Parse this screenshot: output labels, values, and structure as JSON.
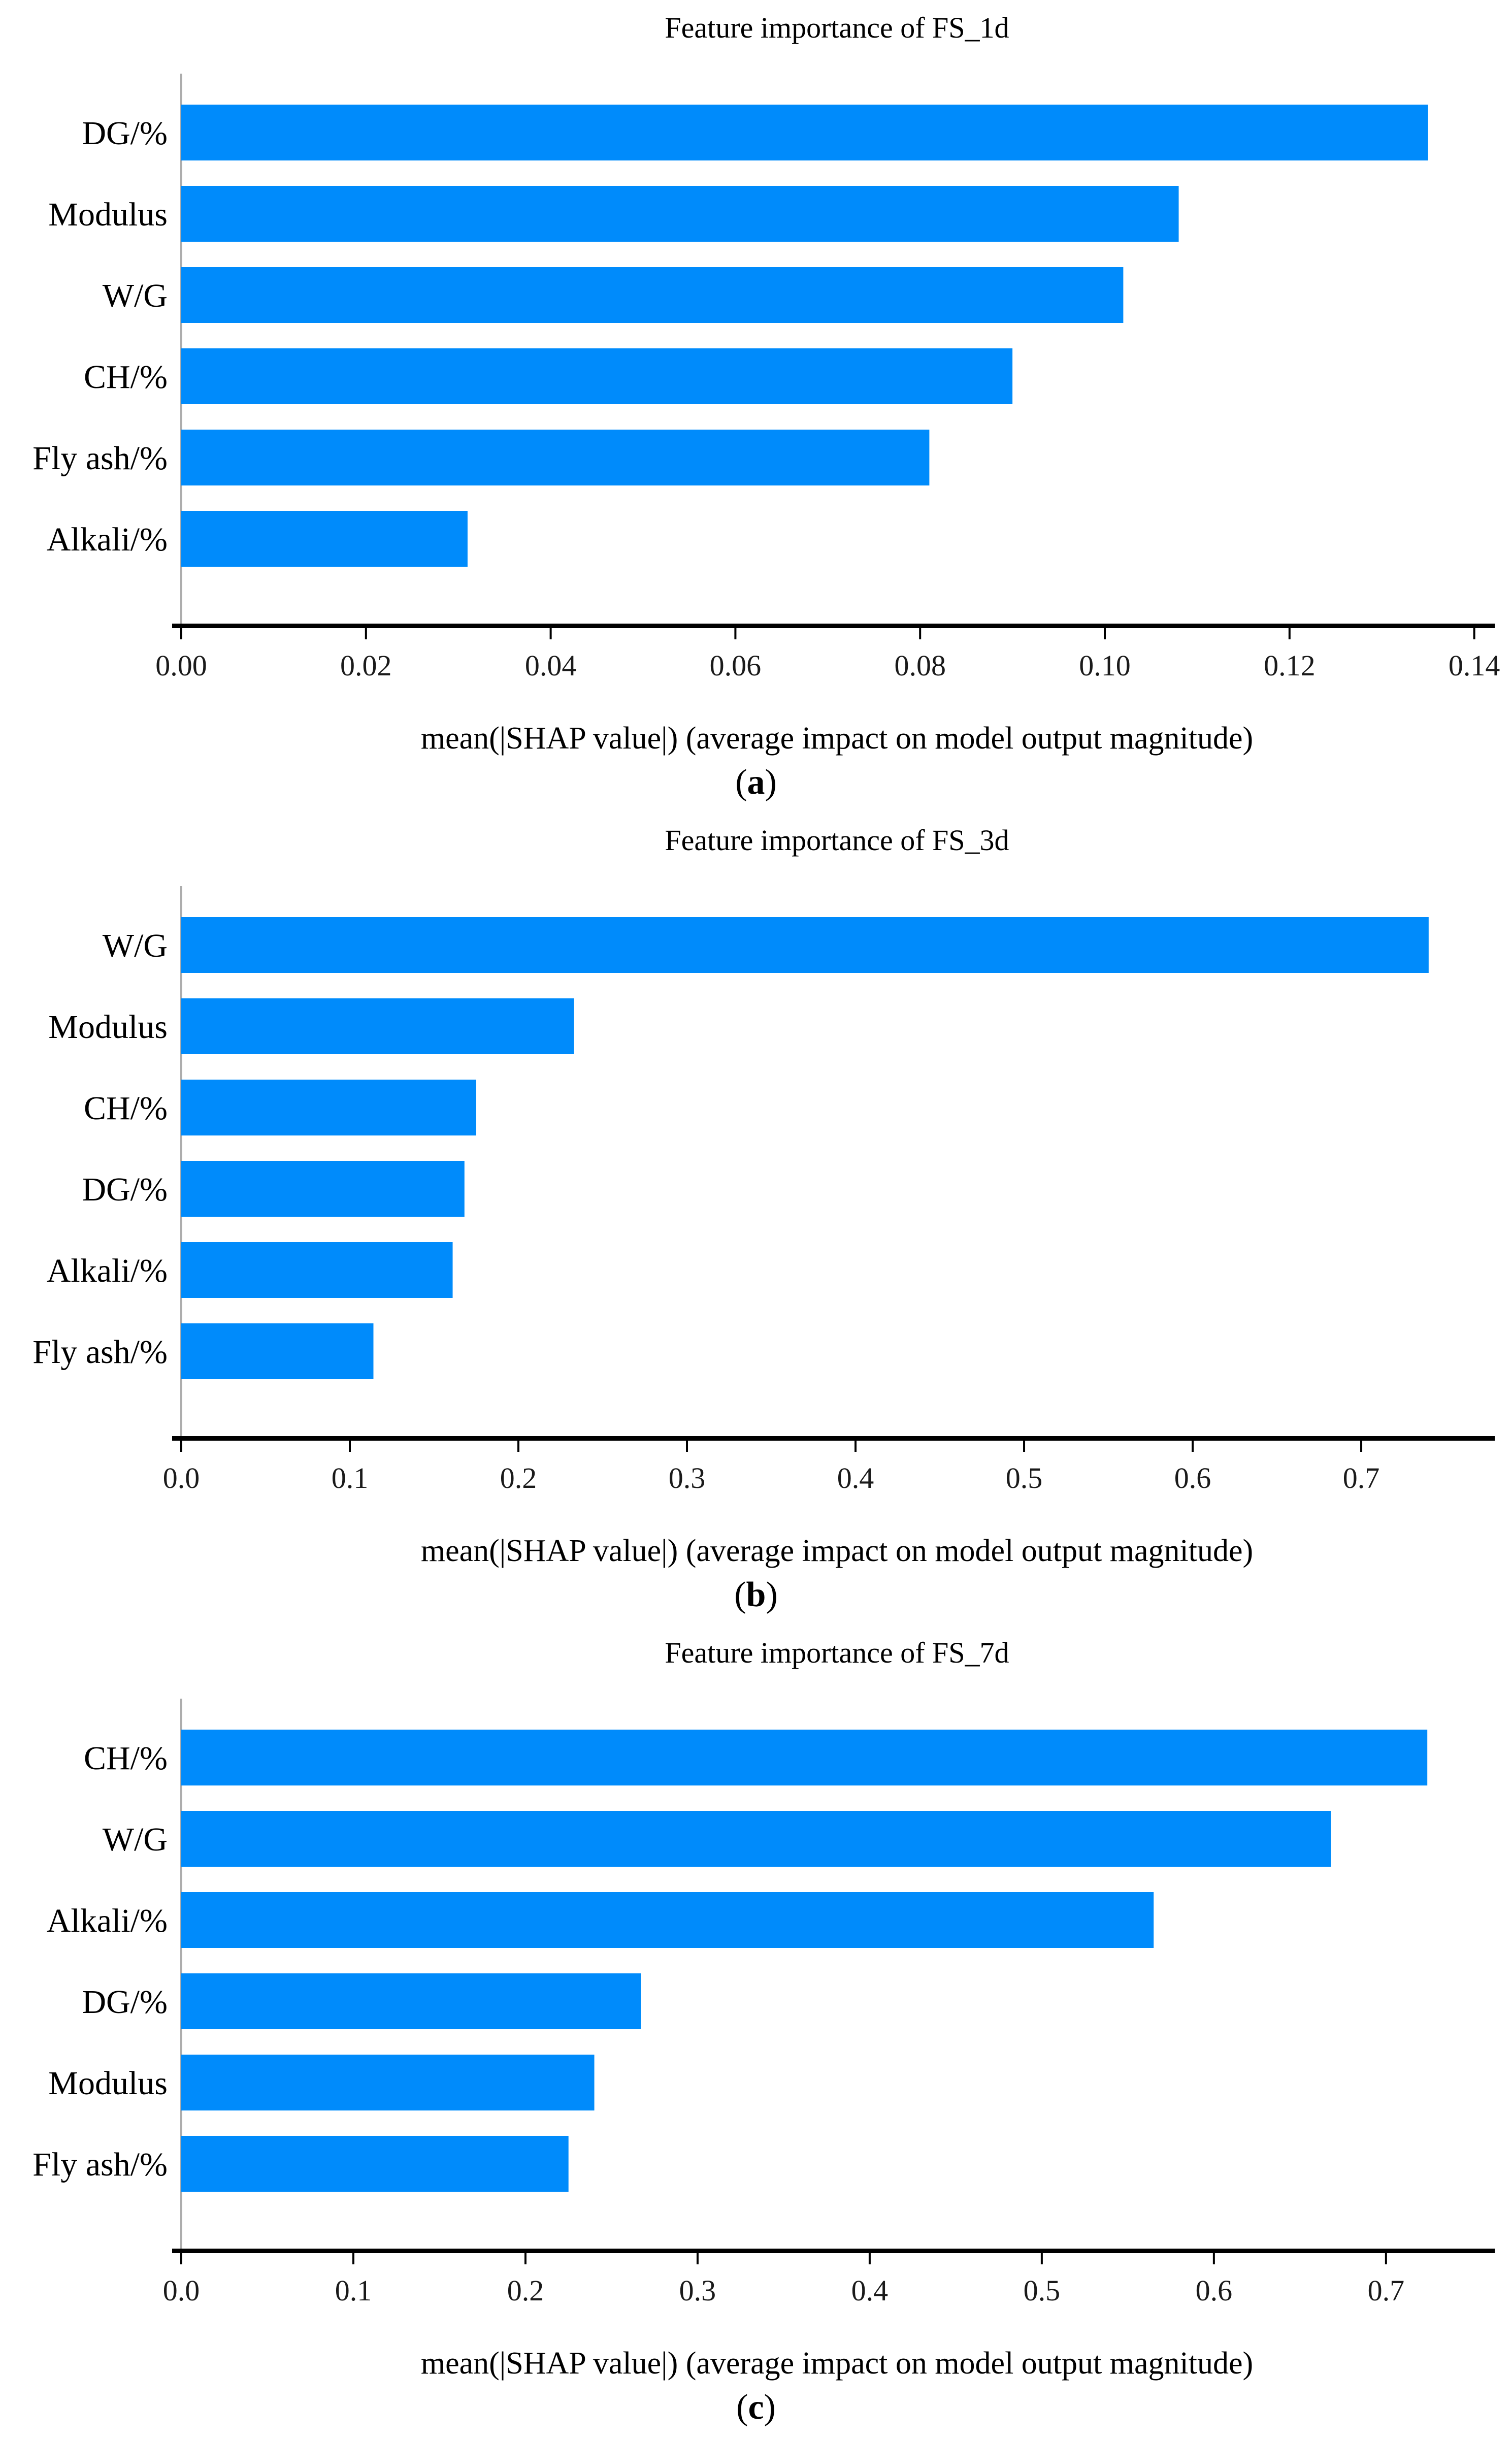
{
  "figure": {
    "background": "#ffffff",
    "bar_color": "#008BFB",
    "spine_color": "#ADADAD",
    "axis_color": "#000000",
    "tick_text_color": "#1A1A1A",
    "text_color": "#000000"
  },
  "chart_data": [
    {
      "type": "bar",
      "orientation": "horizontal",
      "title": "Feature importance of FS_1d",
      "xlabel": "mean(|SHAP value|) (average impact on model output magnitude)",
      "caption_open": "(",
      "caption_letter": "a",
      "caption_close": ")",
      "categories": [
        "DG/%",
        "Modulus",
        "W/G",
        "CH/%",
        "Fly ash/%",
        "Alkali/%"
      ],
      "values": [
        0.135,
        0.108,
        0.102,
        0.09,
        0.081,
        0.031
      ],
      "xlim": [
        0,
        0.142
      ],
      "xticks": [
        0.0,
        0.02,
        0.04,
        0.06,
        0.08,
        0.1,
        0.12,
        0.14
      ],
      "xtick_labels": [
        "0.00",
        "0.02",
        "0.04",
        "0.06",
        "0.08",
        "0.10",
        "0.12",
        "0.14"
      ],
      "grid": false,
      "legend": null
    },
    {
      "type": "bar",
      "orientation": "horizontal",
      "title": "Feature importance of FS_3d",
      "xlabel": "mean(|SHAP value|) (average impact on model output magnitude)",
      "caption_open": "(",
      "caption_letter": "b",
      "caption_close": ")",
      "categories": [
        "W/G",
        "Modulus",
        "CH/%",
        "DG/%",
        "Alkali/%",
        "Fly ash/%"
      ],
      "values": [
        0.74,
        0.233,
        0.175,
        0.168,
        0.161,
        0.114
      ],
      "xlim": [
        0,
        0.778
      ],
      "xticks": [
        0.0,
        0.1,
        0.2,
        0.3,
        0.4,
        0.5,
        0.6,
        0.7
      ],
      "xtick_labels": [
        "0.0",
        "0.1",
        "0.2",
        "0.3",
        "0.4",
        "0.5",
        "0.6",
        "0.7"
      ],
      "grid": false,
      "legend": null
    },
    {
      "type": "bar",
      "orientation": "horizontal",
      "title": "Feature importance of FS_7d",
      "xlabel": "mean(|SHAP value|) (average impact on model output magnitude)",
      "caption_open": "(",
      "caption_letter": "c",
      "caption_close": ")",
      "categories": [
        "CH/%",
        "W/G",
        "Alkali/%",
        "DG/%",
        "Modulus",
        "Fly ash/%"
      ],
      "values": [
        0.724,
        0.668,
        0.565,
        0.267,
        0.24,
        0.225
      ],
      "xlim": [
        0,
        0.762
      ],
      "xticks": [
        0.0,
        0.1,
        0.2,
        0.3,
        0.4,
        0.5,
        0.6,
        0.7
      ],
      "xtick_labels": [
        "0.0",
        "0.1",
        "0.2",
        "0.3",
        "0.4",
        "0.5",
        "0.6",
        "0.7"
      ],
      "grid": false,
      "legend": null
    }
  ]
}
